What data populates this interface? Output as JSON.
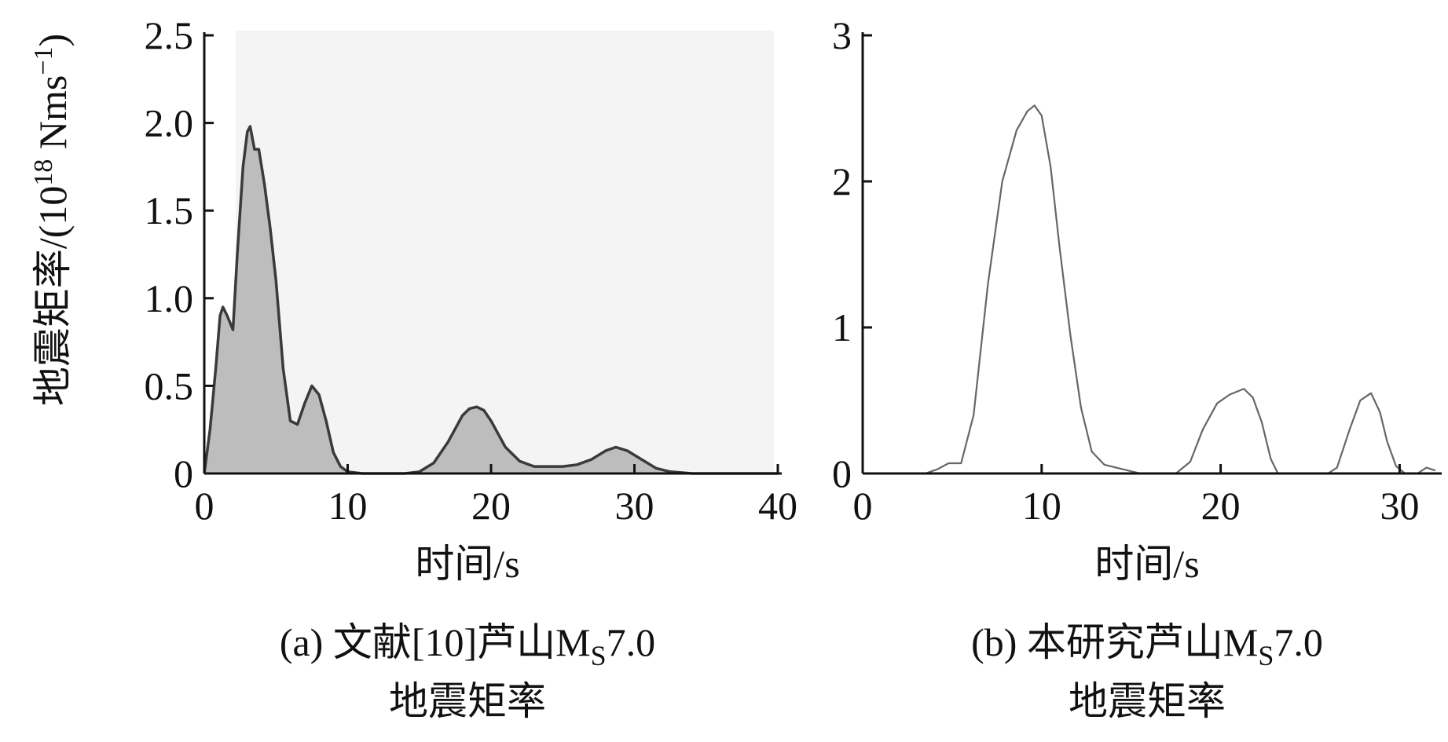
{
  "chart_data": [
    {
      "type": "area",
      "xlabel": "时间/s",
      "ylabel_main": "地震矩率/(10",
      "ylabel_sup1": "18",
      "ylabel_unit": " Nms",
      "ylabel_sup2": "−1",
      "ylabel_end": ")",
      "caption_prefix": "(a) 文献[10]芦山M",
      "caption_sub": "S",
      "caption_suffix": "7.0",
      "caption_line2": "地震矩率",
      "xlim": [
        0,
        40
      ],
      "ylim": [
        0,
        2.5
      ],
      "x_ticks": [
        0,
        10,
        20,
        30,
        40
      ],
      "x_tick_labels": [
        "0",
        "10",
        "20",
        "30",
        "40"
      ],
      "y_ticks": [
        0,
        0.5,
        1.0,
        1.5,
        2.0,
        2.5
      ],
      "y_tick_labels": [
        "0",
        "0.5",
        "1.0",
        "1.5",
        "2.0",
        "2.5"
      ],
      "grid": false,
      "fill_color": "#bdbdbd",
      "line_color": "#3a3a3a",
      "background_color": "#f4f4f4",
      "x": [
        0,
        0.4,
        0.8,
        1.1,
        1.3,
        1.6,
        2.0,
        2.3,
        2.7,
        3.0,
        3.2,
        3.5,
        3.8,
        4.2,
        4.6,
        5.0,
        5.5,
        6.0,
        6.5,
        7.0,
        7.5,
        8.0,
        8.5,
        9.0,
        9.5,
        10,
        11,
        12,
        13,
        14,
        15,
        16,
        17,
        18,
        18.5,
        19,
        19.5,
        20,
        21,
        22,
        23,
        24,
        25,
        26,
        27,
        28,
        28.7,
        29.5,
        30.5,
        31.5,
        32.5,
        34,
        36,
        38,
        40
      ],
      "y": [
        0,
        0.25,
        0.6,
        0.9,
        0.95,
        0.9,
        0.82,
        1.25,
        1.75,
        1.95,
        1.98,
        1.85,
        1.85,
        1.65,
        1.4,
        1.1,
        0.6,
        0.3,
        0.28,
        0.4,
        0.5,
        0.45,
        0.3,
        0.12,
        0.04,
        0.01,
        0,
        0,
        0,
        0,
        0.01,
        0.06,
        0.18,
        0.33,
        0.37,
        0.38,
        0.36,
        0.3,
        0.15,
        0.07,
        0.04,
        0.04,
        0.04,
        0.05,
        0.08,
        0.13,
        0.15,
        0.13,
        0.08,
        0.03,
        0.01,
        0,
        0,
        0,
        0
      ]
    },
    {
      "type": "line",
      "xlabel": "时间/s",
      "caption_prefix": "(b) 本研究芦山M",
      "caption_sub": "S",
      "caption_suffix": "7.0",
      "caption_line2": "地震矩率",
      "xlim": [
        0,
        32
      ],
      "ylim": [
        0,
        3
      ],
      "x_ticks": [
        0,
        10,
        20,
        30
      ],
      "x_tick_labels": [
        "0",
        "10",
        "20",
        "30"
      ],
      "y_ticks": [
        0,
        1,
        2,
        3
      ],
      "y_tick_labels": [
        "0",
        "1",
        "2",
        "3"
      ],
      "grid": false,
      "line_color": "#666666",
      "x": [
        0,
        3.5,
        4.2,
        4.8,
        5.5,
        6.2,
        7,
        7.8,
        8.6,
        9.2,
        9.6,
        10.0,
        10.5,
        11,
        11.6,
        12.2,
        12.8,
        13.5,
        14.5,
        15.5,
        16.5,
        17.5,
        18.3,
        19,
        19.8,
        20.5,
        21.3,
        21.8,
        22.3,
        22.8,
        23.2,
        24,
        25,
        26,
        26.5,
        27.2,
        27.8,
        28.4,
        28.9,
        29.3,
        29.8,
        30.3,
        31,
        31.5,
        32
      ],
      "y": [
        0,
        0,
        0.03,
        0.07,
        0.07,
        0.4,
        1.3,
        2.0,
        2.35,
        2.48,
        2.52,
        2.45,
        2.1,
        1.55,
        0.95,
        0.45,
        0.15,
        0.06,
        0.03,
        0,
        0,
        0,
        0.08,
        0.3,
        0.48,
        0.54,
        0.58,
        0.52,
        0.35,
        0.1,
        0,
        0,
        0,
        0,
        0.04,
        0.3,
        0.5,
        0.55,
        0.42,
        0.22,
        0.05,
        0,
        0,
        0.04,
        0.02
      ]
    }
  ]
}
